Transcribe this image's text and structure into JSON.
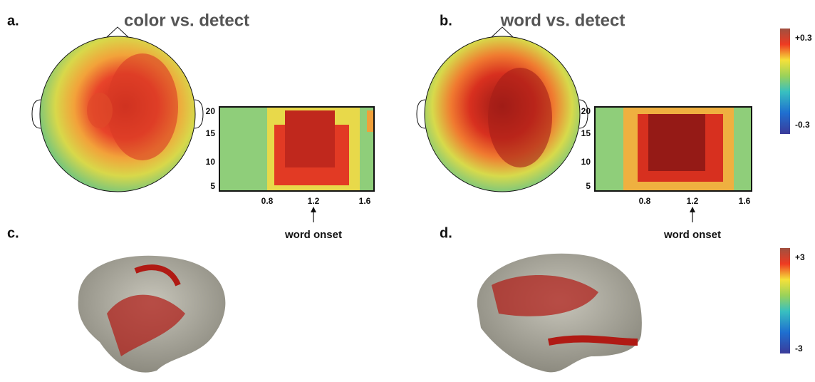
{
  "panels": [
    {
      "label": "a.",
      "title": "color vs. detect",
      "tf_plot": {
        "yticks": [
          "5",
          "10",
          "15",
          "20"
        ],
        "xticks": [
          "0.8",
          "1.2",
          "1.6"
        ],
        "annotation": "word onset"
      }
    },
    {
      "label": "b.",
      "title": "word vs. detect",
      "tf_plot": {
        "yticks": [
          "5",
          "10",
          "15",
          "20"
        ],
        "xticks": [
          "0.8",
          "1.2",
          "1.6"
        ],
        "annotation": "word onset"
      }
    },
    {
      "label": "c."
    },
    {
      "label": "d."
    }
  ],
  "colorbars": [
    {
      "max_label": "+0.3",
      "min_label": "-0.3"
    },
    {
      "max_label": "+3",
      "min_label": "-3"
    }
  ]
}
